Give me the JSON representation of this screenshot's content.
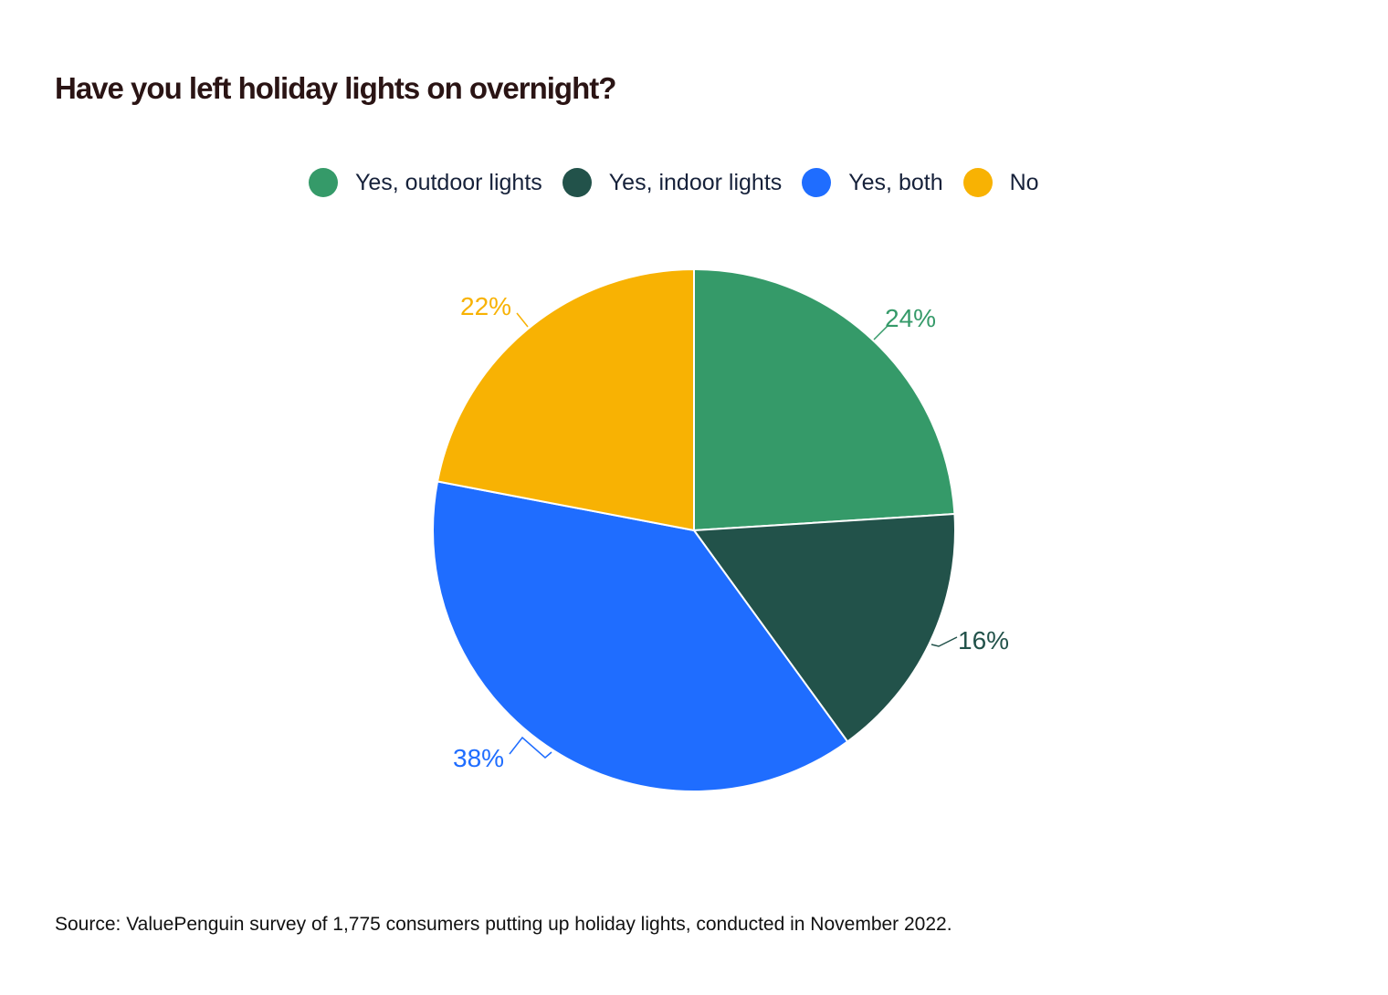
{
  "title": "Have you left holiday lights on overnight?",
  "legend": [
    {
      "label": "Yes, outdoor lights",
      "color": "#359a69"
    },
    {
      "label": "Yes, indoor lights",
      "color": "#22524a"
    },
    {
      "label": "Yes, both",
      "color": "#1f6dff"
    },
    {
      "label": "No",
      "color": "#f8b203"
    }
  ],
  "source": "Source: ValuePenguin survey of 1,775 consumers putting up holiday lights, conducted in November 2022.",
  "chart_data": {
    "type": "pie",
    "title": "Have you left holiday lights on overnight?",
    "categories": [
      "Yes, outdoor lights",
      "Yes, indoor lights",
      "Yes, both",
      "No"
    ],
    "values": [
      24,
      16,
      38,
      22
    ],
    "labels": [
      "24%",
      "16%",
      "38%",
      "22%"
    ],
    "colors": [
      "#359a69",
      "#22524a",
      "#1f6dff",
      "#f8b203"
    ],
    "start_angle": "12 o'clock",
    "direction": "clockwise",
    "legend_position": "top"
  }
}
